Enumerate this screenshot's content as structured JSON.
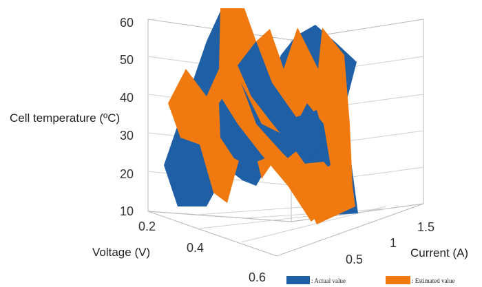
{
  "chart_data": {
    "type": "surface3d",
    "title": "",
    "zlabel": "Cell temperature (ºC)",
    "xlabel": "Voltage (V)",
    "ylabel": "Current (A)",
    "z_ticks": [
      "10",
      "20",
      "30",
      "40",
      "50",
      "60"
    ],
    "x_ticks": [
      "0.2",
      "0.4",
      "0.6"
    ],
    "y_ticks": [
      "0.5",
      "1",
      "1.5"
    ],
    "zlim": [
      10,
      60
    ],
    "xlim": [
      0.2,
      0.6
    ],
    "ylim": [
      0.5,
      1.5
    ],
    "grid": true,
    "legend_position": "bottom-right",
    "series": [
      {
        "name": ": Actual value",
        "color": "#1f5fa6",
        "points": [
          {
            "voltage": 0.22,
            "current": 0.6,
            "temperature": 12
          },
          {
            "voltage": 0.3,
            "current": 0.8,
            "temperature": 45
          },
          {
            "voltage": 0.35,
            "current": 1.0,
            "temperature": 58
          },
          {
            "voltage": 0.42,
            "current": 1.1,
            "temperature": 60
          },
          {
            "voltage": 0.5,
            "current": 1.3,
            "temperature": 40
          },
          {
            "voltage": 0.55,
            "current": 1.4,
            "temperature": 55
          },
          {
            "voltage": 0.6,
            "current": 1.5,
            "temperature": 30
          }
        ]
      },
      {
        "name": ": Estimated value",
        "color": "#f07a10",
        "points": [
          {
            "voltage": 0.22,
            "current": 0.6,
            "temperature": 15
          },
          {
            "voltage": 0.3,
            "current": 0.8,
            "temperature": 40
          },
          {
            "voltage": 0.35,
            "current": 1.0,
            "temperature": 60
          },
          {
            "voltage": 0.42,
            "current": 1.1,
            "temperature": 55
          },
          {
            "voltage": 0.5,
            "current": 1.3,
            "temperature": 35
          },
          {
            "voltage": 0.55,
            "current": 1.4,
            "temperature": 52
          },
          {
            "voltage": 0.6,
            "current": 1.5,
            "temperature": 20
          }
        ]
      }
    ]
  }
}
